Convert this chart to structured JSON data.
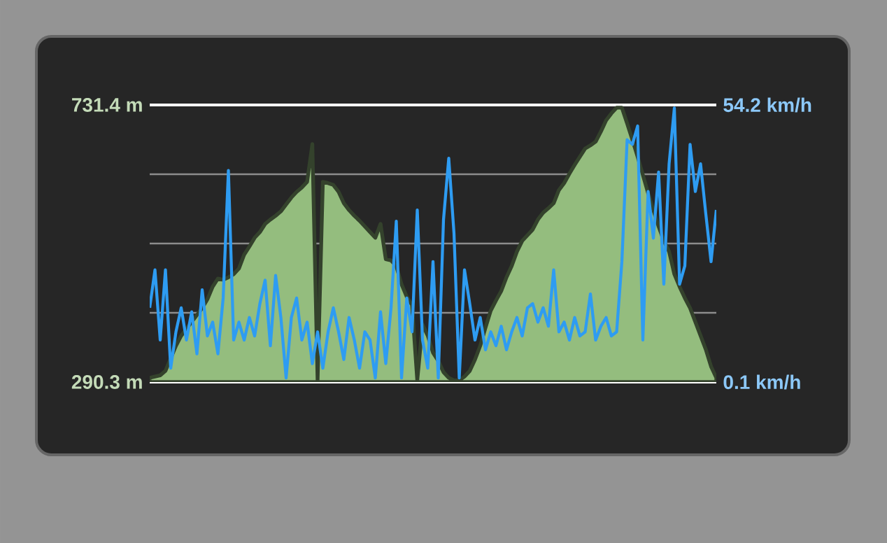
{
  "chart_data": {
    "type": "area",
    "categories": [
      null,
      null,
      null,
      null,
      null,
      null,
      null,
      null,
      null,
      null,
      null,
      null,
      null,
      null,
      null,
      null,
      null,
      null,
      null,
      null,
      null,
      null,
      null,
      null,
      null,
      null,
      null,
      null,
      null,
      null,
      null,
      null,
      null,
      null,
      null,
      null,
      null,
      null,
      null,
      null,
      null,
      null,
      null,
      null,
      null,
      null,
      null,
      null,
      null,
      null,
      null,
      null,
      null,
      null,
      null,
      null,
      null,
      null,
      null,
      null,
      null,
      null,
      null,
      null,
      null,
      null,
      null,
      null,
      null,
      null,
      null,
      null,
      null,
      null,
      null,
      null,
      null,
      null,
      null,
      null,
      null,
      null,
      null,
      null,
      null,
      null,
      null,
      null,
      null,
      null,
      null,
      null,
      null,
      null,
      null,
      null,
      null,
      null,
      null,
      null,
      null,
      null,
      null,
      null,
      null,
      null,
      null,
      null,
      null
    ],
    "series": [
      {
        "type": "area",
        "color": "#94bd7e",
        "values": [
          297,
          299,
          301,
          308,
          328,
          348,
          364,
          375,
          386,
          397,
          408,
          422,
          442,
          455,
          453,
          457,
          462,
          471,
          493,
          506,
          520,
          529,
          542,
          549,
          555,
          562,
          573,
          584,
          593,
          600,
          609,
          669,
          293,
          609,
          607,
          604,
          593,
          575,
          564,
          555,
          547,
          538,
          529,
          520,
          542,
          486,
          484,
          475,
          446,
          426,
          413,
          293,
          382,
          364,
          337,
          324,
          306,
          297,
          293,
          293,
          299,
          308,
          326,
          348,
          377,
          404,
          420,
          435,
          457,
          475,
          498,
          515,
          524,
          533,
          549,
          560,
          567,
          575,
          596,
          607,
          622,
          636,
          649,
          662,
          667,
          673,
          689,
          707,
          718,
          727,
          727,
          702,
          676,
          649,
          620,
          591,
          564,
          538,
          515,
          498,
          462,
          442,
          424,
          408,
          386,
          364,
          342,
          315,
          297
        ]
      },
      {
        "type": "line",
        "axis": "y2",
        "color": "#2e9cf2",
        "values": [
          14.6,
          22.0,
          8.3,
          22.0,
          2.8,
          9.9,
          14.6,
          8.3,
          13.8,
          5.6,
          18.1,
          9.1,
          11.8,
          5.6,
          16.5,
          41.4,
          8.3,
          11.8,
          8.3,
          12.7,
          9.1,
          15.4,
          20.0,
          7.2,
          20.9,
          12.7,
          0.9,
          12.7,
          16.5,
          8.3,
          11.8,
          3.7,
          9.9,
          2.8,
          9.9,
          14.6,
          9.9,
          4.5,
          12.7,
          8.3,
          2.8,
          9.9,
          8.3,
          0.9,
          13.8,
          3.7,
          14.6,
          31.5,
          0.9,
          16.5,
          9.9,
          33.7,
          8.3,
          2.8,
          23.6,
          0.9,
          31.8,
          43.8,
          29.1,
          0.9,
          22.0,
          15.4,
          8.3,
          12.7,
          6.4,
          9.9,
          7.2,
          11.0,
          6.4,
          9.9,
          12.7,
          9.1,
          14.6,
          15.4,
          11.8,
          14.6,
          11.0,
          22.0,
          9.9,
          11.8,
          8.3,
          12.7,
          9.1,
          9.9,
          17.3,
          8.3,
          11.0,
          12.7,
          9.1,
          9.9,
          23.6,
          47.4,
          46.5,
          50.1,
          8.3,
          37.3,
          28.2,
          41.1,
          19.2,
          42.7,
          53.6,
          19.2,
          22.8,
          46.5,
          37.3,
          42.7,
          32.9,
          23.6,
          33.7
        ]
      }
    ],
    "ylim": [
      290.3,
      731.4
    ],
    "yticks": [
      {
        "value": 290.3,
        "label": "290.3 m"
      },
      {
        "value": 400.575,
        "label": null
      },
      {
        "value": 510.85,
        "label": null
      },
      {
        "value": 621.125,
        "label": null
      },
      {
        "value": 731.4,
        "label": "731.4 m"
      }
    ],
    "y2lim": [
      0.1,
      54.2
    ],
    "y2ticks": [
      {
        "value": 0.1,
        "label": "0.1 km/h"
      },
      {
        "value": 54.2,
        "label": "54.2 km/h"
      }
    ],
    "grid": "y"
  }
}
